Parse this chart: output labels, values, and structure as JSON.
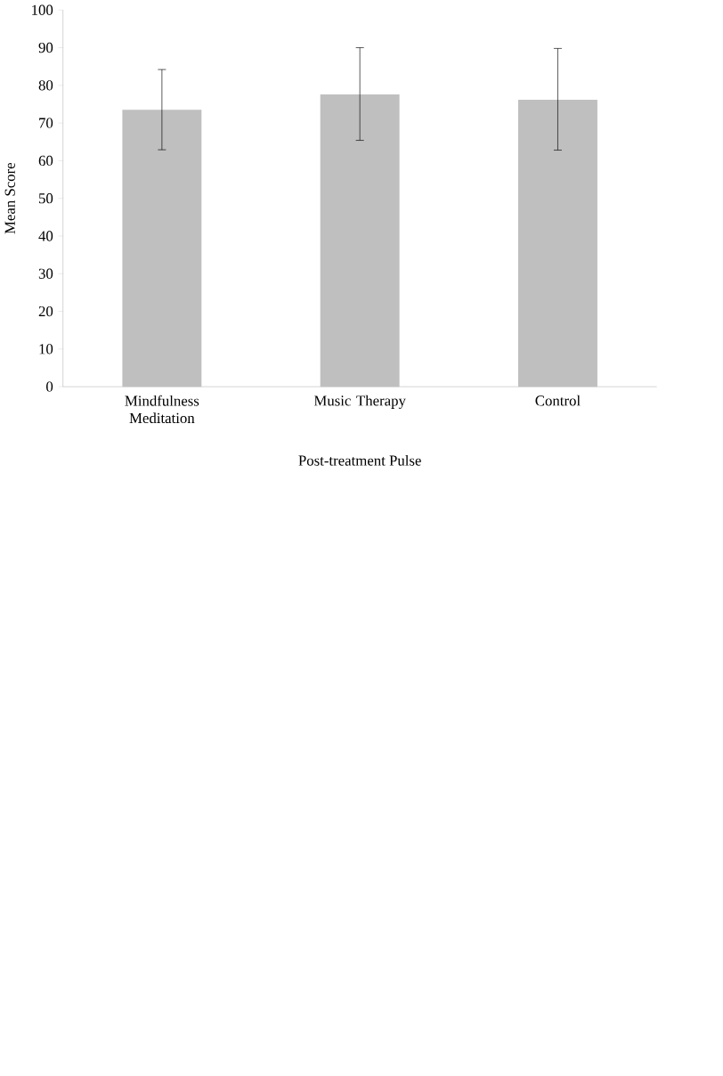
{
  "chart_data": {
    "type": "bar",
    "categories": [
      "Mindfulness Meditation",
      "Music Therapy",
      "Control"
    ],
    "values": [
      73.5,
      77.6,
      76.2
    ],
    "errors": [
      [
        62.9,
        84.2
      ],
      [
        65.4,
        90.0
      ],
      [
        62.8,
        89.8
      ]
    ],
    "color": "#bfbfbf",
    "xlabel": "Post-treatment Pulse",
    "ylabel": "Mean Score",
    "ylim": [
      0,
      100
    ],
    "yticks": [
      0,
      10,
      20,
      30,
      40,
      50,
      60,
      70,
      80,
      90,
      100
    ]
  }
}
